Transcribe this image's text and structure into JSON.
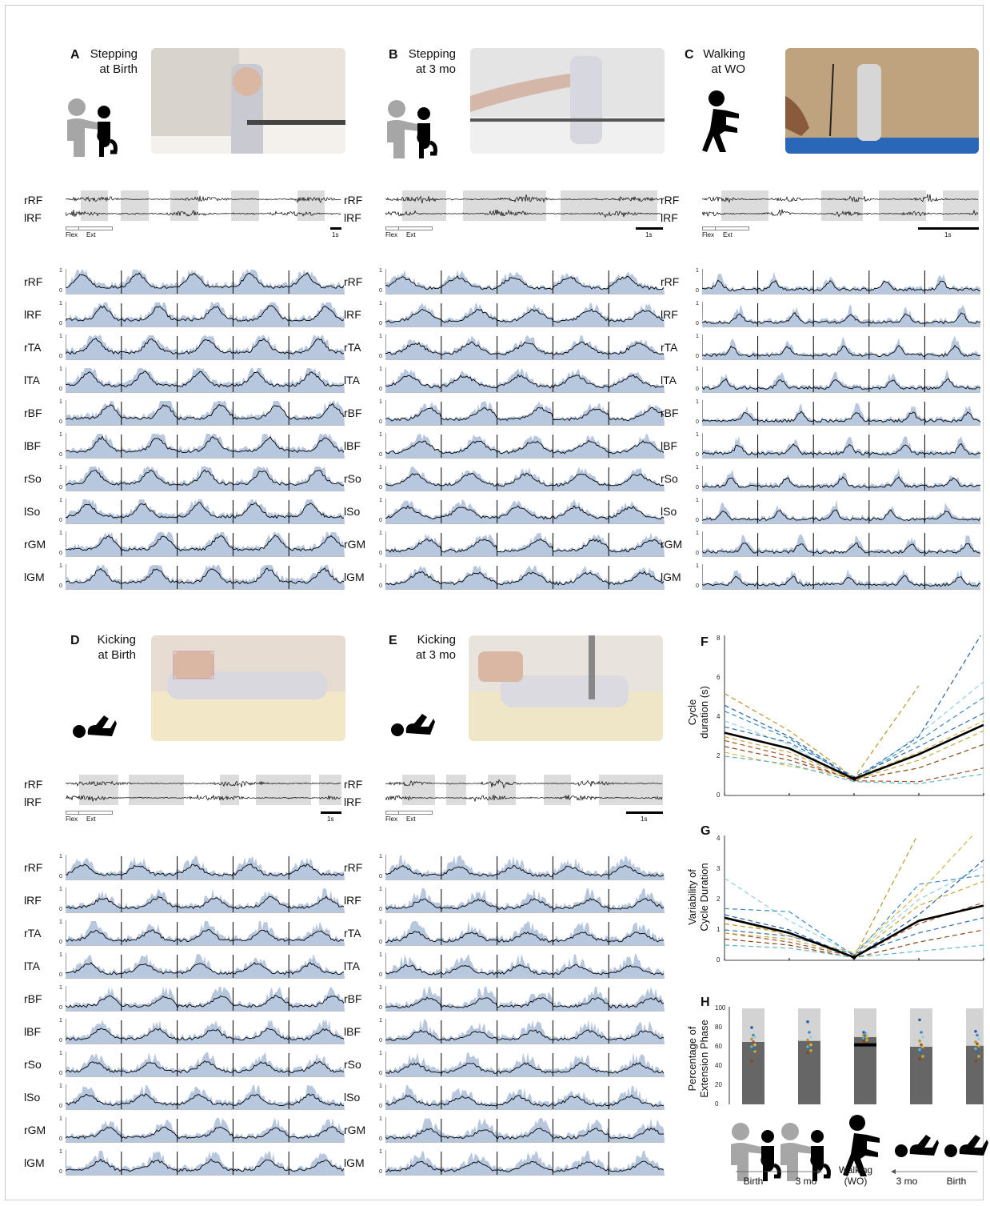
{
  "panels": {
    "A": {
      "letter": "A",
      "title": "Stepping\nat Birth",
      "flex": "Flex",
      "ext": "Ext",
      "scale": "1s"
    },
    "B": {
      "letter": "B",
      "title": "Stepping\nat 3 mo",
      "flex": "Flex",
      "ext": "Ext",
      "scale": "1s"
    },
    "C": {
      "letter": "C",
      "title": "Walking\nat WO",
      "flex": "Flex",
      "ext": "Ext",
      "scale": "1s"
    },
    "D": {
      "letter": "D",
      "title": "Kicking\nat Birth",
      "flex": "Flex",
      "ext": "Ext",
      "scale": "1s"
    },
    "E": {
      "letter": "E",
      "title": "Kicking\nat 3 mo",
      "flex": "Flex",
      "ext": "Ext",
      "scale": "1s"
    },
    "F": {
      "letter": "F"
    },
    "G": {
      "letter": "G"
    },
    "H": {
      "letter": "H"
    }
  },
  "raw_channels": [
    "rRF",
    "lRF"
  ],
  "muscles": [
    "rRF",
    "lRF",
    "rTA",
    "lTA",
    "rBF",
    "lBF",
    "rSo",
    "lSo",
    "rGM",
    "lGM"
  ],
  "trace_ticks": [
    "1",
    "0"
  ],
  "colors": {
    "mean_line": "#000000",
    "spread_fill": "#b7c7de",
    "phase_gray": "#dcdcdc",
    "bar_dark": "#666666",
    "bar_light": "#d3d3d3"
  },
  "chart_data": [
    {
      "type": "line",
      "panel": "F",
      "ylabel": "Cycle\nduration (s)",
      "ylim": [
        0,
        8
      ],
      "yticks": [
        0,
        2,
        4,
        6,
        8
      ],
      "categories": [
        "Birth",
        "3 mo",
        "Walking (WO)",
        "3 mo",
        "Birth"
      ],
      "mean": [
        3.2,
        2.4,
        0.85,
        2.1,
        3.6
      ],
      "subjects": [
        {
          "color": "#b8962e",
          "values": [
            5.2,
            3.3,
            0.9,
            5.6,
            null
          ]
        },
        {
          "color": "#1f5fa8",
          "values": [
            4.6,
            3.0,
            0.85,
            3.0,
            8.4
          ]
        },
        {
          "color": "#3a8ac4",
          "values": [
            4.3,
            2.9,
            0.8,
            2.8,
            5.0
          ]
        },
        {
          "color": "#8fd0e0",
          "values": [
            3.8,
            2.6,
            0.7,
            3.1,
            5.8
          ]
        },
        {
          "color": "#a0522d",
          "values": [
            2.8,
            2.0,
            0.75,
            0.7,
            1.4
          ]
        },
        {
          "color": "#8b4513",
          "values": [
            2.5,
            1.8,
            0.8,
            1.4,
            2.6
          ]
        },
        {
          "color": "#d4b64a",
          "values": [
            2.2,
            1.5,
            0.9,
            2.2,
            3.8
          ]
        },
        {
          "color": "#5fb5c9",
          "values": [
            2.0,
            1.6,
            0.7,
            0.6,
            1.1
          ]
        },
        {
          "color": "#2e6eaa",
          "values": [
            3.5,
            2.7,
            0.95,
            2.5,
            4.2
          ]
        },
        {
          "color": "#c8a83a",
          "values": [
            3.0,
            2.2,
            0.8,
            1.8,
            3.3
          ]
        }
      ]
    },
    {
      "type": "line",
      "panel": "G",
      "ylabel": "Variability of\nCycle Duration",
      "ylim": [
        0,
        4
      ],
      "yticks": [
        0,
        1,
        2,
        3,
        4
      ],
      "categories": [
        "Birth",
        "3 mo",
        "Walking (WO)",
        "3 mo",
        "Birth"
      ],
      "mean": [
        1.4,
        0.9,
        0.1,
        1.3,
        1.8
      ],
      "subjects": [
        {
          "color": "#8fd0e0",
          "values": [
            2.7,
            1.3,
            0.2,
            2.0,
            3.1
          ]
        },
        {
          "color": "#3a8ac4",
          "values": [
            1.7,
            1.6,
            0.15,
            2.5,
            2.8
          ]
        },
        {
          "color": "#d4b64a",
          "values": [
            1.4,
            0.8,
            0.25,
            2.2,
            4.5
          ]
        },
        {
          "color": "#b8962e",
          "values": [
            1.2,
            0.9,
            0.1,
            4.2,
            null
          ]
        },
        {
          "color": "#1f5fa8",
          "values": [
            1.5,
            1.0,
            0.1,
            1.5,
            3.3
          ]
        },
        {
          "color": "#a0522d",
          "values": [
            0.9,
            0.6,
            0.12,
            1.2,
            1.9
          ]
        },
        {
          "color": "#8b4513",
          "values": [
            0.7,
            0.5,
            0.08,
            0.6,
            1.0
          ]
        },
        {
          "color": "#5fb5c9",
          "values": [
            0.5,
            0.4,
            0.1,
            0.3,
            0.5
          ]
        },
        {
          "color": "#c8a83a",
          "values": [
            0.9,
            0.7,
            0.15,
            1.8,
            2.6
          ]
        },
        {
          "color": "#2e6eaa",
          "values": [
            1.0,
            0.8,
            0.2,
            0.9,
            1.4
          ]
        }
      ]
    },
    {
      "type": "bar",
      "panel": "H",
      "ylabel": "Percentage of\nExtension Phase",
      "ylim": [
        0,
        100
      ],
      "yticks": [
        0,
        20,
        40,
        60,
        80,
        100
      ],
      "categories": [
        "Birth",
        "3 mo",
        "Walking\n(WO)",
        "3 mo",
        "Birth"
      ],
      "values": [
        65,
        66,
        70,
        60,
        61
      ],
      "walking_mean_line": 62,
      "subject_points": [
        [
          80,
          72,
          70,
          68,
          65,
          62,
          60,
          58,
          55,
          45
        ],
        [
          86,
          75,
          70,
          67,
          64,
          62,
          60,
          58,
          56,
          54
        ],
        [
          75,
          74,
          73,
          72,
          71,
          70,
          69,
          68,
          67,
          66
        ],
        [
          88,
          75,
          70,
          66,
          62,
          60,
          57,
          54,
          50,
          47
        ],
        [
          76,
          72,
          68,
          65,
          63,
          61,
          58,
          55,
          50,
          45
        ]
      ]
    }
  ]
}
